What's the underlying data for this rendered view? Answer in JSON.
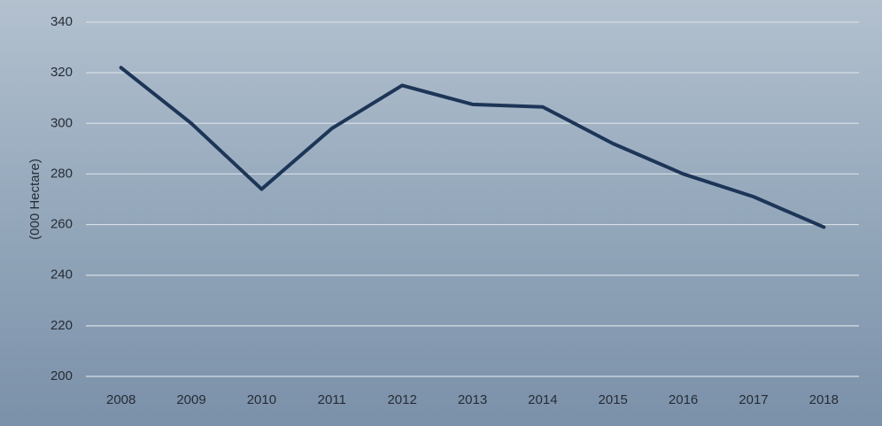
{
  "chart_data": {
    "type": "line",
    "y_label": "(000 Hectare)",
    "categories": [
      "2008",
      "2009",
      "2010",
      "2011",
      "2012",
      "2013",
      "2014",
      "2015",
      "2016",
      "2017",
      "2018"
    ],
    "values": [
      322,
      300,
      274,
      298,
      315,
      307.5,
      306.5,
      292,
      280,
      271,
      259
    ],
    "color": "#1d3557",
    "ylim": [
      200,
      340
    ],
    "yticks": [
      200,
      220,
      240,
      260,
      280,
      300,
      320,
      340
    ],
    "grid": true
  }
}
